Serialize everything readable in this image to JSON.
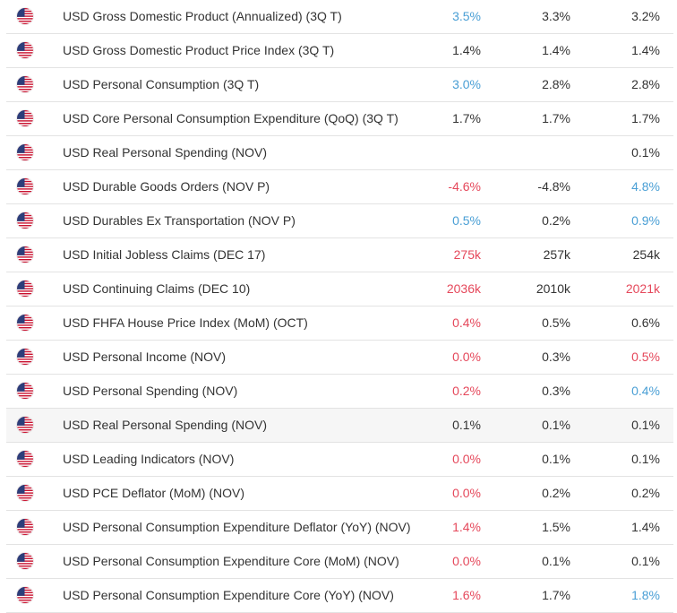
{
  "colors": {
    "better": "#4a9fd5",
    "worse": "#e5485b",
    "neutral": "#333333"
  },
  "rows": [
    {
      "flag": "us-flag-icon",
      "event": "USD Gross Domestic Product (Annualized) (3Q T)",
      "actual": "3.5%",
      "actual_status": "good",
      "forecast": "3.3%",
      "previous": "3.2%",
      "previous_status": "neutral"
    },
    {
      "flag": "us-flag-icon",
      "event": "USD Gross Domestic Product Price Index (3Q T)",
      "actual": "1.4%",
      "actual_status": "neutral",
      "forecast": "1.4%",
      "previous": "1.4%",
      "previous_status": "neutral"
    },
    {
      "flag": "us-flag-icon",
      "event": "USD Personal Consumption (3Q T)",
      "actual": "3.0%",
      "actual_status": "good",
      "forecast": "2.8%",
      "previous": "2.8%",
      "previous_status": "neutral"
    },
    {
      "flag": "us-flag-icon",
      "event": "USD Core Personal Consumption Expenditure (QoQ) (3Q T)",
      "actual": "1.7%",
      "actual_status": "neutral",
      "forecast": "1.7%",
      "previous": "1.7%",
      "previous_status": "neutral"
    },
    {
      "flag": "us-flag-icon",
      "event": "USD Real Personal Spending (NOV)",
      "actual": "",
      "actual_status": "neutral",
      "forecast": "",
      "previous": "0.1%",
      "previous_status": "neutral"
    },
    {
      "flag": "us-flag-icon",
      "event": "USD Durable Goods Orders (NOV P)",
      "actual": "-4.6%",
      "actual_status": "bad",
      "forecast": "-4.8%",
      "previous": "4.8%",
      "previous_status": "good"
    },
    {
      "flag": "us-flag-icon",
      "event": "USD Durables Ex Transportation (NOV P)",
      "actual": "0.5%",
      "actual_status": "good",
      "forecast": "0.2%",
      "previous": "0.9%",
      "previous_status": "good"
    },
    {
      "flag": "us-flag-icon",
      "event": "USD Initial Jobless Claims (DEC 17)",
      "actual": "275k",
      "actual_status": "bad",
      "forecast": "257k",
      "previous": "254k",
      "previous_status": "neutral"
    },
    {
      "flag": "us-flag-icon",
      "event": "USD Continuing Claims (DEC 10)",
      "actual": "2036k",
      "actual_status": "bad",
      "forecast": "2010k",
      "previous": "2021k",
      "previous_status": "bad"
    },
    {
      "flag": "us-flag-icon",
      "event": "USD FHFA House Price Index (MoM) (OCT)",
      "actual": "0.4%",
      "actual_status": "bad",
      "forecast": "0.5%",
      "previous": "0.6%",
      "previous_status": "neutral"
    },
    {
      "flag": "us-flag-icon",
      "event": "USD Personal Income (NOV)",
      "actual": "0.0%",
      "actual_status": "bad",
      "forecast": "0.3%",
      "previous": "0.5%",
      "previous_status": "bad"
    },
    {
      "flag": "us-flag-icon",
      "event": "USD Personal Spending (NOV)",
      "actual": "0.2%",
      "actual_status": "bad",
      "forecast": "0.3%",
      "previous": "0.4%",
      "previous_status": "good"
    },
    {
      "flag": "us-flag-icon",
      "event": "USD Real Personal Spending (NOV)",
      "actual": "0.1%",
      "actual_status": "neutral",
      "forecast": "0.1%",
      "previous": "0.1%",
      "previous_status": "neutral",
      "highlight": true
    },
    {
      "flag": "us-flag-icon",
      "event": "USD Leading Indicators (NOV)",
      "actual": "0.0%",
      "actual_status": "bad",
      "forecast": "0.1%",
      "previous": "0.1%",
      "previous_status": "neutral"
    },
    {
      "flag": "us-flag-icon",
      "event": "USD PCE Deflator (MoM) (NOV)",
      "actual": "0.0%",
      "actual_status": "bad",
      "forecast": "0.2%",
      "previous": "0.2%",
      "previous_status": "neutral"
    },
    {
      "flag": "us-flag-icon",
      "event": "USD Personal Consumption Expenditure Deflator (YoY) (NOV)",
      "actual": "1.4%",
      "actual_status": "bad",
      "forecast": "1.5%",
      "previous": "1.4%",
      "previous_status": "neutral"
    },
    {
      "flag": "us-flag-icon",
      "event": "USD Personal Consumption Expenditure Core (MoM) (NOV)",
      "actual": "0.0%",
      "actual_status": "bad",
      "forecast": "0.1%",
      "previous": "0.1%",
      "previous_status": "neutral"
    },
    {
      "flag": "us-flag-icon",
      "event": "USD Personal Consumption Expenditure Core (YoY) (NOV)",
      "actual": "1.6%",
      "actual_status": "bad",
      "forecast": "1.7%",
      "previous": "1.8%",
      "previous_status": "good"
    }
  ]
}
